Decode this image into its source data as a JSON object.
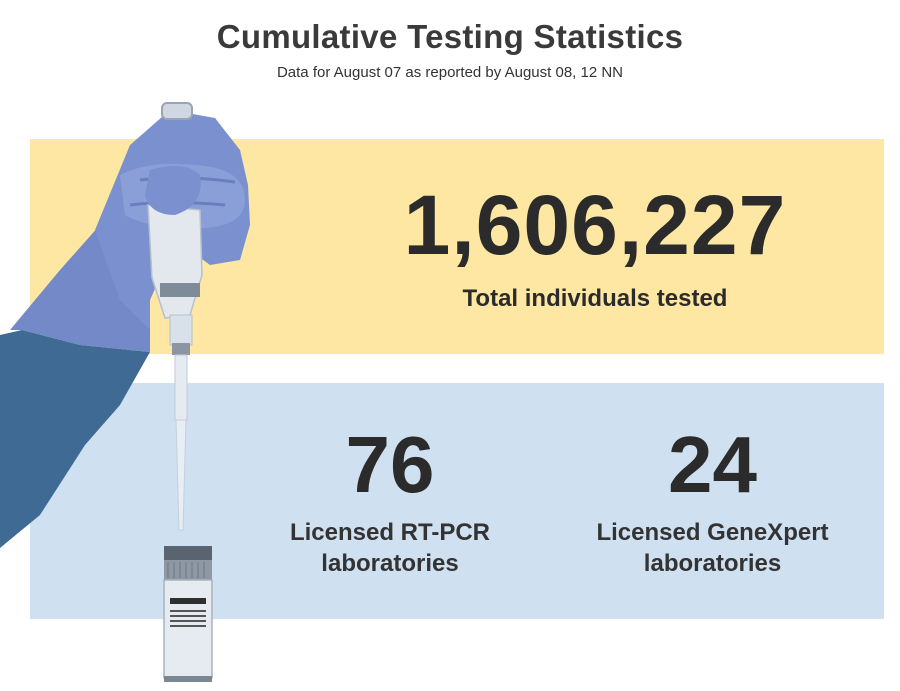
{
  "header": {
    "title": "Cumulative Testing Statistics",
    "subtitle": "Data for August 07 as reported by August 08, 12 NN"
  },
  "total": {
    "value": "1,606,227",
    "label": "Total individuals tested"
  },
  "labs": [
    {
      "value": "76",
      "label_line1": "Licensed RT-PCR",
      "label_line2": "laboratories"
    },
    {
      "value": "24",
      "label_line1": "Licensed GeneXpert",
      "label_line2": "laboratories"
    }
  ],
  "illustration": {
    "icon": "gloved-hand-pipette-icon",
    "sample_tube_icon": "sample-tube-icon"
  },
  "colors": {
    "yellow_band": "#fde7a2",
    "blue_band": "#cfe0f1",
    "glove": "#7b90cf",
    "sleeve": "#3f6a94",
    "text": "#2b2b2b"
  }
}
